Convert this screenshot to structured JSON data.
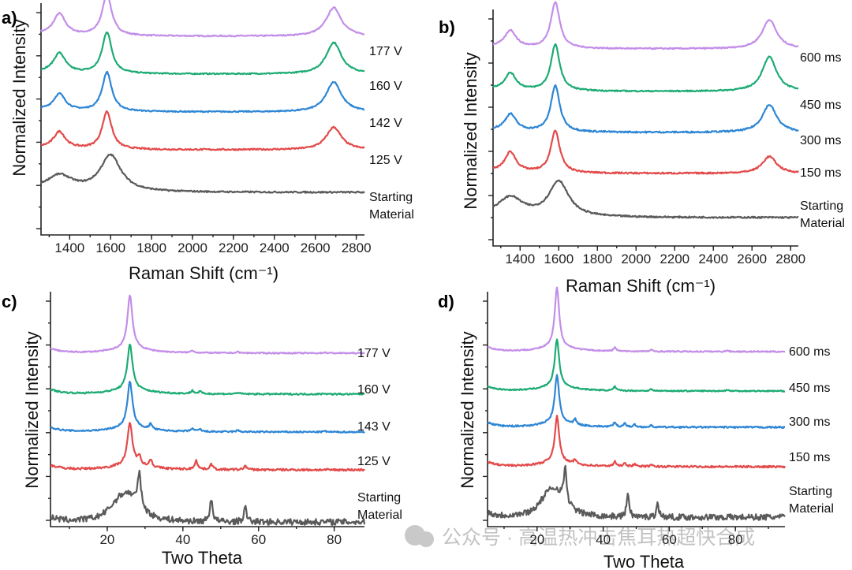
{
  "chart_data": [
    {
      "panel": "a)",
      "type": "line",
      "xlabel": "Raman Shift (cm⁻¹)",
      "ylabel": "Normalized Intensity",
      "xlim": [
        1260,
        2840
      ],
      "xticks": [
        1400,
        1600,
        1800,
        2000,
        2200,
        2400,
        2600,
        2800
      ],
      "peaks": [
        {
          "c": 1350,
          "w": 35,
          "kind": "D"
        },
        {
          "c": 1582,
          "w": 28,
          "kind": "G"
        },
        {
          "c": 2690,
          "w": 45,
          "kind": "2D"
        }
      ],
      "series": [
        {
          "name": "177 V",
          "label": "177 V",
          "color": "#c38ee8",
          "base": 0.12,
          "amps": [
            0.28,
            0.55,
            0.38
          ],
          "noise": 0.004
        },
        {
          "name": "160 V",
          "label": "160 V",
          "color": "#1dab74",
          "base": 0.12,
          "amps": [
            0.26,
            0.55,
            0.42
          ],
          "noise": 0.004
        },
        {
          "name": "142 V",
          "label": "142 V",
          "color": "#2d86d4",
          "base": 0.12,
          "amps": [
            0.22,
            0.52,
            0.4
          ],
          "noise": 0.004
        },
        {
          "name": "125 V",
          "label": "125 V",
          "color": "#e34a4a",
          "base": 0.12,
          "amps": [
            0.22,
            0.5,
            0.3
          ],
          "noise": 0.005
        },
        {
          "name": "Starting Material",
          "label": [
            "Starting",
            "Material"
          ],
          "color": "#5a5a5a",
          "base": 0.1,
          "amps": [
            0.2,
            0.48,
            0.0
          ],
          "noise": 0.005
        }
      ]
    },
    {
      "panel": "b)",
      "type": "line",
      "xlabel": "Raman Shift (cm⁻¹)",
      "ylabel": "Normalized Intensity",
      "xlim": [
        1260,
        2840
      ],
      "xticks": [
        1400,
        1600,
        1800,
        2000,
        2200,
        2400,
        2600,
        2800
      ],
      "peaks": [
        {
          "c": 1350,
          "w": 35,
          "kind": "D"
        },
        {
          "c": 1582,
          "w": 28,
          "kind": "G"
        },
        {
          "c": 2690,
          "w": 45,
          "kind": "2D"
        }
      ],
      "series": [
        {
          "name": "600 ms",
          "label": "600 ms",
          "color": "#c38ee8",
          "base": 0.1,
          "amps": [
            0.22,
            0.6,
            0.38
          ],
          "noise": 0.004
        },
        {
          "name": "450 ms",
          "label": "450 ms",
          "color": "#1dab74",
          "base": 0.1,
          "amps": [
            0.22,
            0.6,
            0.45
          ],
          "noise": 0.004
        },
        {
          "name": "300 ms",
          "label": "300 ms",
          "color": "#2d86d4",
          "base": 0.1,
          "amps": [
            0.22,
            0.6,
            0.36
          ],
          "noise": 0.005
        },
        {
          "name": "150 ms",
          "label": "150 ms",
          "color": "#e34a4a",
          "base": 0.1,
          "amps": [
            0.26,
            0.55,
            0.22
          ],
          "noise": 0.005
        },
        {
          "name": "Starting Material",
          "label": [
            "Starting",
            "Material"
          ],
          "color": "#5a5a5a",
          "base": 0.08,
          "amps": [
            0.24,
            0.46,
            0.0
          ],
          "noise": 0.005
        }
      ]
    },
    {
      "panel": "c)",
      "type": "line",
      "xlabel": "Two Theta",
      "ylabel": "Normalized Intensity",
      "xlim": [
        5,
        88
      ],
      "xticks": [
        20,
        40,
        60,
        80
      ],
      "series": [
        {
          "name": "177 V",
          "label": "177 V",
          "color": "#c38ee8",
          "base": 0.05,
          "peak": 0.7,
          "extra": [
            [
              42.5,
              0.03
            ],
            [
              54.5,
              0.015
            ],
            [
              77.5,
              0.01
            ]
          ],
          "noise": 0.004
        },
        {
          "name": "160 V",
          "label": "160 V",
          "color": "#1dab74",
          "base": 0.05,
          "peak": 0.6,
          "extra": [
            [
              42.5,
              0.04
            ],
            [
              44.5,
              0.03
            ],
            [
              54.5,
              0.02
            ],
            [
              77.5,
              0.01
            ]
          ],
          "noise": 0.005
        },
        {
          "name": "143 V",
          "label": "143 V",
          "color": "#2d86d4",
          "base": 0.05,
          "peak": 0.6,
          "extra": [
            [
              31.5,
              0.07
            ],
            [
              42.5,
              0.04
            ],
            [
              44.5,
              0.03
            ],
            [
              54.5,
              0.02
            ],
            [
              77.5,
              0.01
            ]
          ],
          "noise": 0.005
        },
        {
          "name": "125 V",
          "label": "125 V",
          "color": "#e34a4a",
          "base": 0.05,
          "peak": 0.55,
          "extra": [
            [
              28.5,
              0.12
            ],
            [
              31.5,
              0.1
            ],
            [
              43.5,
              0.12
            ],
            [
              47.5,
              0.07
            ],
            [
              56.5,
              0.05
            ]
          ],
          "noise": 0.007
        },
        {
          "name": "Starting Material",
          "label": [
            "Starting",
            "Material"
          ],
          "color": "#5a5a5a",
          "base": 0.05,
          "hump": 0.3,
          "extra": [
            [
              28.5,
              0.45
            ],
            [
              47.5,
              0.3
            ],
            [
              56.5,
              0.18
            ]
          ],
          "noise": 0.02
        }
      ]
    },
    {
      "panel": "d)",
      "type": "line",
      "xlabel": "Two Theta",
      "ylabel": "Normalized Intensity",
      "xlim": [
        5,
        95
      ],
      "xticks": [
        20,
        40,
        60,
        80
      ],
      "series": [
        {
          "name": "600 ms",
          "label": "600 ms",
          "color": "#c38ee8",
          "base": 0.05,
          "peak": 0.78,
          "extra": [
            [
              43.5,
              0.05
            ],
            [
              54.5,
              0.02
            ],
            [
              77.5,
              0.015
            ]
          ],
          "noise": 0.004
        },
        {
          "name": "450 ms",
          "label": "450 ms",
          "color": "#1dab74",
          "base": 0.05,
          "peak": 0.62,
          "extra": [
            [
              43.5,
              0.05
            ],
            [
              54.5,
              0.02
            ],
            [
              77.5,
              0.015
            ]
          ],
          "noise": 0.004
        },
        {
          "name": "300 ms",
          "label": "300 ms",
          "color": "#2d86d4",
          "base": 0.05,
          "peak": 0.62,
          "extra": [
            [
              31.5,
              0.07
            ],
            [
              43.5,
              0.06
            ],
            [
              46.5,
              0.05
            ],
            [
              49.5,
              0.03
            ],
            [
              54.5,
              0.02
            ]
          ],
          "noise": 0.005
        },
        {
          "name": "150 ms",
          "label": "150 ms",
          "color": "#e34a4a",
          "base": 0.05,
          "peak": 0.6,
          "extra": [
            [
              31.5,
              0.06
            ],
            [
              43.5,
              0.06
            ],
            [
              46.5,
              0.05
            ],
            [
              49.5,
              0.03
            ],
            [
              54.5,
              0.02
            ]
          ],
          "noise": 0.006
        },
        {
          "name": "Starting Material",
          "label": [
            "Starting",
            "Material"
          ],
          "color": "#5a5a5a",
          "base": 0.05,
          "hump": 0.3,
          "extra": [
            [
              28.5,
              0.45
            ],
            [
              47.5,
              0.32
            ],
            [
              56.5,
              0.18
            ]
          ],
          "noise": 0.02
        }
      ]
    }
  ],
  "watermark": "公众号 · 高温热冲击焦耳热超快合成"
}
